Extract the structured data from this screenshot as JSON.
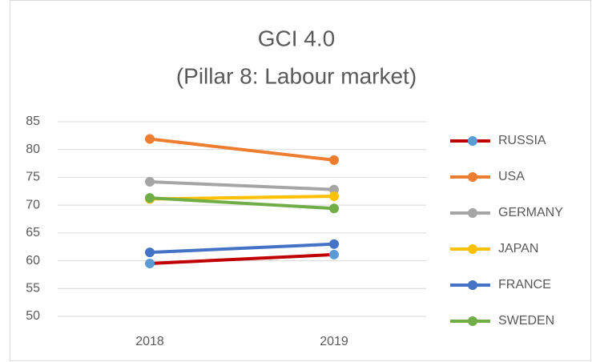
{
  "chart_data": {
    "type": "line",
    "title": "GCI 4.0",
    "subtitle": "(Pillar 8: Labour market)",
    "categories": [
      "2018",
      "2019"
    ],
    "series": [
      {
        "name": "RUSSIA",
        "color": "#c00000",
        "marker_color": "#5b9bd5",
        "values": [
          59.5,
          61.1
        ]
      },
      {
        "name": "USA",
        "color": "#ed7d31",
        "values": [
          81.9,
          78.1
        ]
      },
      {
        "name": "GERMANY",
        "color": "#a5a5a5",
        "values": [
          74.2,
          72.8
        ]
      },
      {
        "name": "JAPAN",
        "color": "#ffc000",
        "values": [
          71.1,
          71.6
        ]
      },
      {
        "name": "FRANCE",
        "color": "#4472c4",
        "values": [
          61.5,
          63.0
        ]
      },
      {
        "name": "SWEDEN",
        "color": "#70ad47",
        "values": [
          71.3,
          69.4
        ]
      }
    ],
    "ylim": [
      50,
      85
    ],
    "yticks": [
      50,
      55,
      60,
      65,
      70,
      75,
      80,
      85
    ],
    "grid": true,
    "legend": "right"
  }
}
